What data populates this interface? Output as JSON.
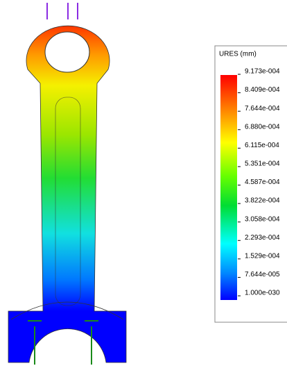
{
  "legend": {
    "title": "URES (mm)",
    "labels": [
      "9.173e-004",
      "8.409e-004",
      "7.644e-004",
      "6.880e-004",
      "6.115e-004",
      "5.351e-004",
      "4.587e-004",
      "3.822e-004",
      "3.058e-004",
      "2.293e-004",
      "1.529e-004",
      "7.644e-005",
      "1.000e-030"
    ]
  }
}
